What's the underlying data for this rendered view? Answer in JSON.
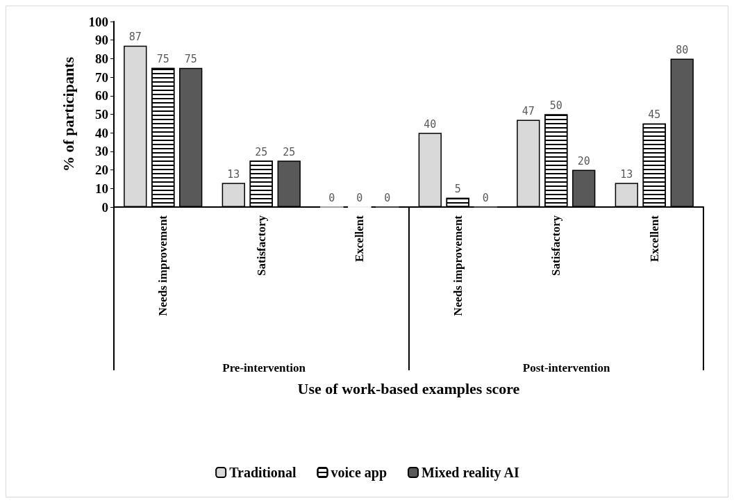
{
  "chart_data": {
    "type": "bar",
    "xlabel": "Use of work-based examples score",
    "ylabel": "% of participants",
    "categories": [
      "Needs improvement",
      "Satisfactory",
      "Excellent",
      "Needs improvement",
      "Satisfactory",
      "Excellent"
    ],
    "annotations": [
      "Pre-intervention",
      "Post-intervention"
    ],
    "series": [
      {
        "name": "Traditional",
        "color": "#d9d9d9",
        "values": [
          87,
          13,
          0,
          40,
          47,
          13
        ]
      },
      {
        "name": "voice app",
        "color": "#ffffff",
        "values": [
          75,
          25,
          0,
          5,
          50,
          45
        ]
      },
      {
        "name": "Mixed reality AI",
        "color": "#595959",
        "values": [
          75,
          25,
          0,
          0,
          20,
          80
        ]
      }
    ],
    "ylim": [
      0,
      100
    ],
    "yticks": [
      0,
      10,
      20,
      30,
      40,
      50,
      60,
      70,
      80,
      90,
      100
    ],
    "grid": false,
    "legend": "bottom",
    "data_labels": true
  }
}
